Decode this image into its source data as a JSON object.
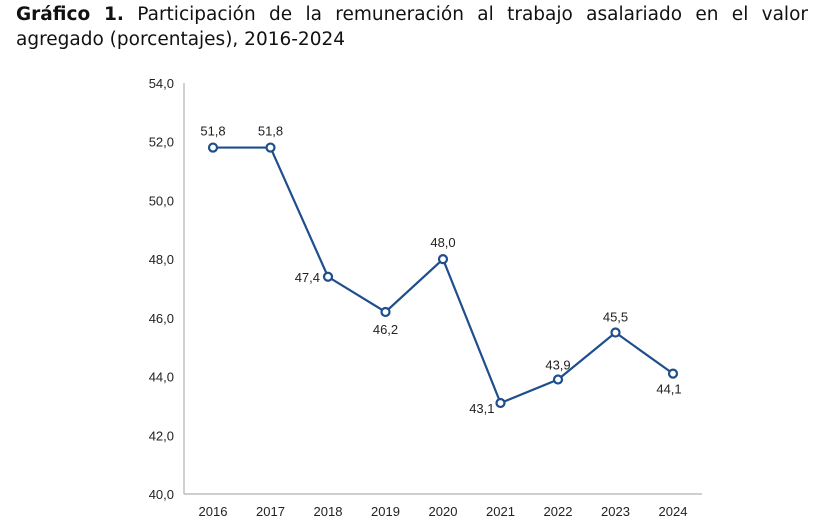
{
  "title": {
    "label": "Gráfico 1.",
    "text": " Participación de la remuneración al trabajo asalariado en el valor agregado (porcentajes), 2016-2024"
  },
  "chart_data": {
    "type": "line",
    "title": "Gráfico 1. Participación de la remuneración al trabajo asalariado en el valor agregado (porcentajes), 2016-2024",
    "categories": [
      "2016",
      "2017",
      "2018",
      "2019",
      "2020",
      "2021",
      "2022",
      "2023",
      "2024"
    ],
    "series": [
      {
        "values": [
          51.8,
          51.8,
          47.4,
          46.2,
          48.0,
          43.1,
          43.9,
          45.5,
          44.1
        ],
        "labels": [
          "51,8",
          "51,8",
          "47,4",
          "46,2",
          "48,0",
          "43,1",
          "43,9",
          "45,5",
          "44,1"
        ]
      }
    ],
    "ylim": [
      40,
      54
    ],
    "yticks": [
      "40,0",
      "42,0",
      "44,0",
      "46,0",
      "48,0",
      "50,0",
      "52,0",
      "54,0"
    ],
    "grid": false,
    "colors": {
      "line": "#1f4e8c",
      "axis": "#b0b0b0"
    }
  }
}
